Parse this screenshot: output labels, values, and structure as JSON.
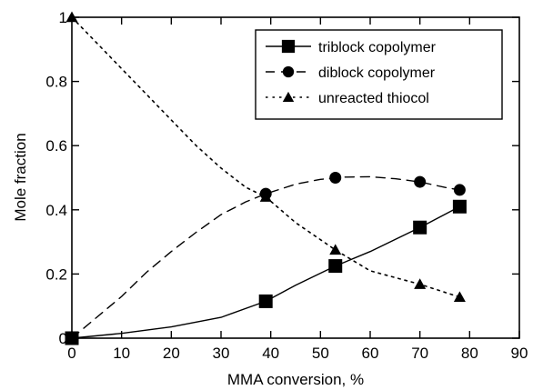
{
  "chart_data": {
    "type": "line",
    "title": "",
    "xlabel": "MMA conversion, %",
    "ylabel": "Mole fraction",
    "xlim": [
      0,
      90
    ],
    "ylim": [
      0,
      1
    ],
    "x_ticks": [
      "0",
      "10",
      "20",
      "30",
      "40",
      "50",
      "60",
      "70",
      "80",
      "90"
    ],
    "y_ticks": [
      "0",
      "0.2",
      "0.4",
      "0.6",
      "0.8",
      "1"
    ],
    "grid": false,
    "legend_position": "top-right",
    "series": [
      {
        "name": "triblock copolymer",
        "marker": "square",
        "line_style": "solid",
        "x": [
          0,
          39,
          53,
          70,
          78
        ],
        "y": [
          0,
          0.115,
          0.225,
          0.345,
          0.41
        ],
        "curve_x": [
          0,
          10,
          20,
          30,
          39,
          45,
          53,
          60,
          70,
          78
        ],
        "curve_y": [
          0,
          0.015,
          0.035,
          0.065,
          0.115,
          0.165,
          0.225,
          0.27,
          0.345,
          0.41
        ]
      },
      {
        "name": "diblock copolymer",
        "marker": "circle",
        "line_style": "dashed",
        "x": [
          0,
          39,
          53,
          70,
          78
        ],
        "y": [
          0,
          0.45,
          0.5,
          0.487,
          0.462
        ],
        "curve_x": [
          0,
          5,
          10,
          15,
          20,
          25,
          30,
          35,
          39,
          45,
          50,
          55,
          60,
          65,
          70,
          75,
          78
        ],
        "curve_y": [
          0,
          0.065,
          0.13,
          0.205,
          0.27,
          0.33,
          0.385,
          0.425,
          0.45,
          0.48,
          0.495,
          0.502,
          0.503,
          0.497,
          0.487,
          0.47,
          0.462
        ]
      },
      {
        "name": "unreacted thiocol",
        "marker": "triangle",
        "line_style": "dotted",
        "x": [
          0,
          39,
          53,
          70,
          78
        ],
        "y": [
          1,
          0.44,
          0.275,
          0.168,
          0.128
        ],
        "curve_x": [
          0,
          5,
          10,
          15,
          20,
          25,
          30,
          35,
          39,
          45,
          53,
          60,
          70,
          78
        ],
        "curve_y": [
          1,
          0.92,
          0.84,
          0.76,
          0.68,
          0.6,
          0.53,
          0.47,
          0.44,
          0.36,
          0.275,
          0.21,
          0.168,
          0.128
        ]
      }
    ]
  }
}
